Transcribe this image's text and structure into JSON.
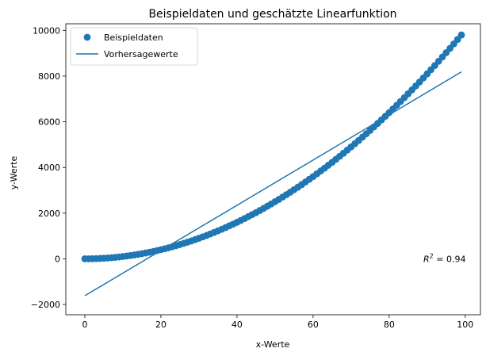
{
  "chart_data": {
    "type": "scatter",
    "title": "Beispieldaten und geschätzte Linearfunktion",
    "xlabel": "x-Werte",
    "ylabel": "y-Werte",
    "xlim": [
      -5,
      104
    ],
    "ylim": [
      -2450,
      10290
    ],
    "xticks": [
      0,
      20,
      40,
      60,
      80,
      100
    ],
    "yticks": [
      -2000,
      0,
      2000,
      4000,
      6000,
      8000,
      10000
    ],
    "grid": false,
    "legend_position": "top-left",
    "scatter_series": {
      "name": "Beispieldaten",
      "color": "#1f77b4",
      "x_start": 0,
      "x_end": 99,
      "step": 1,
      "y_formula": "x^2"
    },
    "line_series": {
      "name": "Vorhersagewerte",
      "color": "#1f77b4",
      "x": [
        0,
        99
      ],
      "y": [
        -1617,
        8184
      ]
    },
    "annotation": {
      "label": "R",
      "superscript": "2",
      "value_text": " = 0.94",
      "x": 89,
      "y": 0
    }
  }
}
